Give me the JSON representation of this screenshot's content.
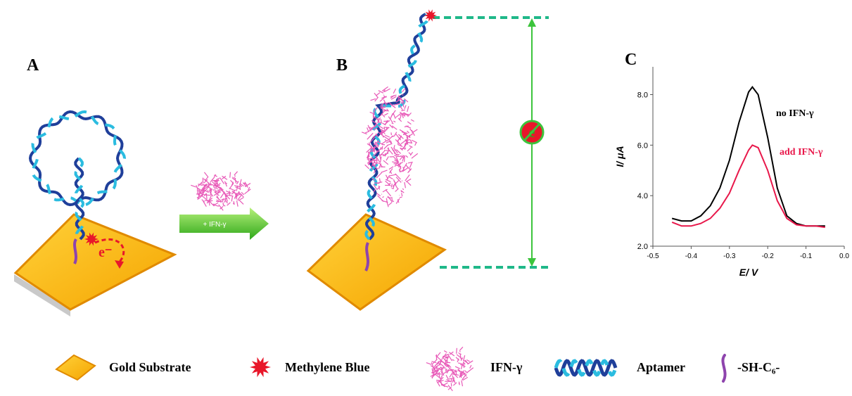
{
  "panels": {
    "a": "A",
    "b": "B",
    "c": "C"
  },
  "arrow_label": "+ IFN-γ",
  "electron_label": "e⁻",
  "blocked_electron_label": "e",
  "legend": [
    "Gold Substrate",
    "Methylene Blue",
    "IFN-γ",
    "Aptamer",
    "-SH-C₆-"
  ],
  "chart_data": {
    "type": "line",
    "xlabel": "E/ V",
    "ylabel": "I/ μA",
    "x": [
      -0.45,
      -0.425,
      -0.4,
      -0.375,
      -0.35,
      -0.325,
      -0.3,
      -0.275,
      -0.25,
      -0.24,
      -0.225,
      -0.2,
      -0.175,
      -0.15,
      -0.125,
      -0.1,
      -0.075,
      -0.05
    ],
    "series": [
      {
        "name": "no IFN-γ",
        "color": "#000000",
        "values": [
          3.1,
          3.0,
          3.0,
          3.2,
          3.6,
          4.3,
          5.4,
          6.9,
          8.1,
          8.3,
          8.0,
          6.3,
          4.3,
          3.2,
          2.9,
          2.8,
          2.8,
          2.8
        ]
      },
      {
        "name": "add IFN-γ",
        "color": "#e8174a",
        "values": [
          2.95,
          2.8,
          2.8,
          2.9,
          3.1,
          3.5,
          4.1,
          5.0,
          5.8,
          6.0,
          5.9,
          5.0,
          3.8,
          3.1,
          2.85,
          2.8,
          2.8,
          2.75
        ]
      }
    ],
    "xlim": [
      -0.5,
      0
    ],
    "xticks": [
      -0.5,
      -0.4,
      -0.3,
      -0.2,
      -0.1,
      {
        "value": 0,
        "label": "0.0"
      }
    ],
    "ylim": [
      2,
      9.1
    ],
    "yticks": [
      {
        "value": 2,
        "label": "2.0"
      },
      {
        "value": 4,
        "label": "4.0"
      },
      {
        "value": 6,
        "label": "6.0"
      },
      {
        "value": 8,
        "label": "8.0"
      }
    ]
  }
}
